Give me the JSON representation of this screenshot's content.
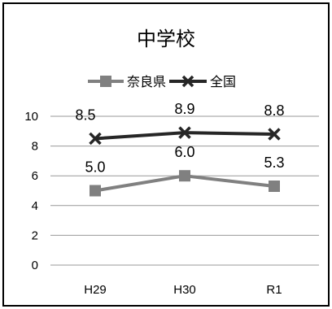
{
  "chart_data": {
    "type": "line",
    "title": "中学校",
    "categories": [
      "H29",
      "H30",
      "R1"
    ],
    "series": [
      {
        "name": "奈良県",
        "values": [
          5.0,
          6.0,
          5.3
        ],
        "color": "#808080",
        "marker": "square"
      },
      {
        "name": "全国",
        "values": [
          8.5,
          8.9,
          8.8
        ],
        "color": "#262626",
        "marker": "x"
      }
    ],
    "ylim": [
      0,
      10
    ],
    "yticks": [
      0,
      2,
      4,
      6,
      8,
      10
    ],
    "xlabel": "",
    "ylabel": "",
    "grid": true,
    "legend": "top",
    "data_labels": true,
    "gridline_color": "#999999",
    "border_color": "#000000"
  }
}
